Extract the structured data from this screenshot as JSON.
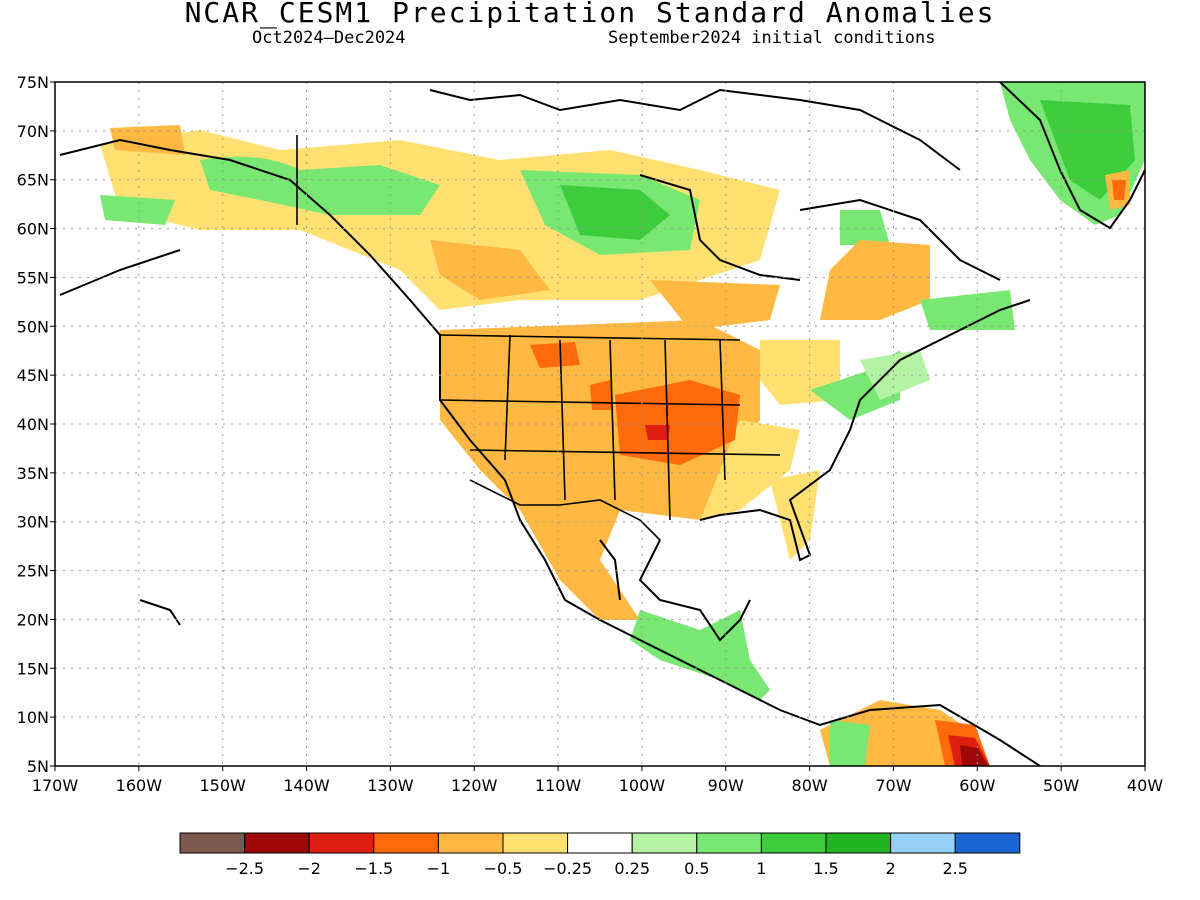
{
  "title": "NCAR_CESM1 Precipitation Standard Anomalies",
  "subtitle_left": "Oct2024–Dec2024",
  "subtitle_right": "September2024 initial conditions",
  "chart_data": {
    "type": "heatmap",
    "lat_ticks": [
      "75N",
      "70N",
      "65N",
      "60N",
      "55N",
      "50N",
      "45N",
      "40N",
      "35N",
      "30N",
      "25N",
      "20N",
      "15N",
      "10N",
      "5N"
    ],
    "lon_ticks": [
      "170W",
      "160W",
      "150W",
      "140W",
      "130W",
      "120W",
      "110W",
      "100W",
      "90W",
      "80W",
      "70W",
      "60W",
      "50W",
      "40W"
    ],
    "lat_range": [
      5,
      75
    ],
    "lon_range": [
      -170,
      -40
    ],
    "grid": "dotted",
    "colorbar": {
      "labels": [
        "-2.5",
        "-2",
        "-1.5",
        "-1",
        "-0.5",
        "-0.25",
        "0.25",
        "0.5",
        "1",
        "1.5",
        "2",
        "2.5"
      ],
      "colors": [
        "#7e5a4e",
        "#a00808",
        "#e01e10",
        "#ff6a0a",
        "#ffb842",
        "#ffe070",
        "#ffffff",
        "#b4f2a4",
        "#78e872",
        "#3ccc3c",
        "#22b422",
        "#96d0f8",
        "#1a64d4"
      ]
    },
    "regions": [
      {
        "name": "central-us-dry",
        "lon": -97,
        "lat": 40,
        "level": "-1.5"
      },
      {
        "name": "northern-plains-dry",
        "lon": -110,
        "lat": 46,
        "level": "-1"
      },
      {
        "name": "hudson-wet",
        "lon": -100,
        "lat": 61,
        "level": "1"
      },
      {
        "name": "greenland-wet",
        "lon": -42,
        "lat": 70,
        "level": "0.5"
      },
      {
        "name": "venezuela-dry",
        "lon": -62,
        "lat": 8,
        "level": "-2"
      }
    ]
  }
}
